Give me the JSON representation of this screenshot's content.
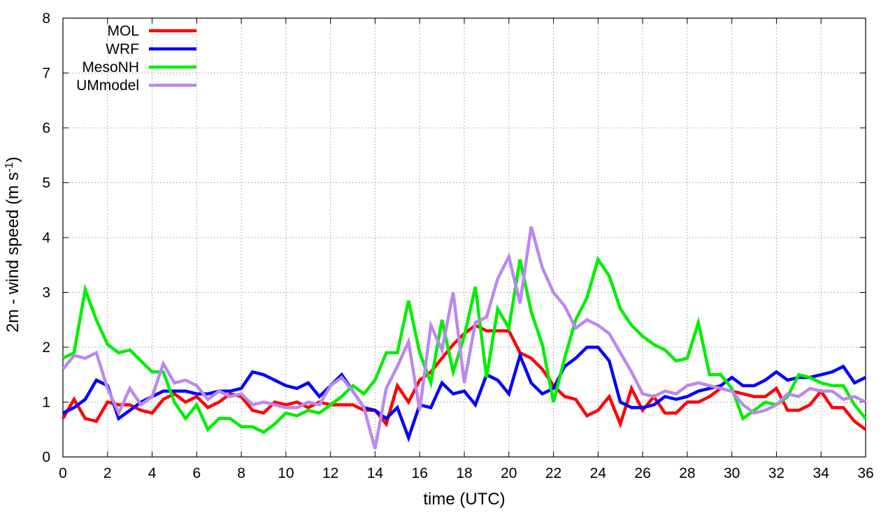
{
  "chart_data": {
    "type": "line",
    "xlabel": "time (UTC)",
    "ylabel": {
      "main": "2m - wind speed  (m s",
      "sup": "-1",
      "close": ")"
    },
    "xlim": [
      0,
      36
    ],
    "ylim": [
      0,
      8
    ],
    "xticks": [
      "0",
      "2",
      "4",
      "6",
      "8",
      "10",
      "12",
      "14",
      "16",
      "18",
      "20",
      "22",
      "24",
      "26",
      "28",
      "30",
      "32",
      "34",
      "36"
    ],
    "yticks": [
      "0",
      "1",
      "2",
      "3",
      "4",
      "5",
      "6",
      "7",
      "8"
    ],
    "grid": true,
    "legend_position": "top-left",
    "x": [
      0,
      0.5,
      1,
      1.5,
      2,
      2.5,
      3,
      3.5,
      4,
      4.5,
      5,
      5.5,
      6,
      6.5,
      7,
      7.5,
      8,
      8.5,
      9,
      9.5,
      10,
      10.5,
      11,
      11.5,
      12,
      12.5,
      13,
      13.5,
      14,
      14.5,
      15,
      15.5,
      16,
      16.5,
      17,
      17.5,
      18,
      18.5,
      19,
      19.5,
      20,
      20.5,
      21,
      21.5,
      22,
      22.5,
      23,
      23.5,
      24,
      24.5,
      25,
      25.5,
      26,
      26.5,
      27,
      27.5,
      28,
      28.5,
      29,
      29.5,
      30,
      30.5,
      31,
      31.5,
      32,
      32.5,
      33,
      33.5,
      34,
      34.5,
      35,
      35.5,
      36
    ],
    "series": [
      {
        "name": "MOL",
        "color": "#ff0000",
        "values": [
          0.7,
          1.05,
          0.7,
          0.65,
          1.0,
          0.95,
          0.95,
          0.85,
          0.8,
          1.05,
          1.15,
          1.0,
          1.1,
          0.9,
          1.0,
          1.15,
          1.1,
          0.85,
          0.8,
          1.0,
          0.95,
          1.0,
          0.9,
          1.0,
          0.95,
          0.95,
          0.95,
          0.85,
          0.85,
          0.6,
          1.3,
          1.0,
          1.4,
          1.55,
          1.8,
          2.05,
          2.25,
          2.4,
          2.3,
          2.3,
          2.3,
          1.9,
          1.8,
          1.6,
          1.3,
          1.1,
          1.05,
          0.75,
          0.85,
          1.1,
          0.6,
          1.25,
          0.85,
          1.1,
          0.8,
          0.8,
          1.0,
          1.0,
          1.1,
          1.25,
          1.2,
          1.15,
          1.1,
          1.1,
          1.25,
          0.85,
          0.85,
          0.95,
          1.2,
          0.9,
          0.9,
          0.65,
          0.5
        ]
      },
      {
        "name": "WRF",
        "color": "#0000ff",
        "values": [
          0.8,
          0.9,
          1.05,
          1.4,
          1.3,
          0.7,
          0.85,
          1.0,
          1.1,
          1.2,
          1.2,
          1.2,
          1.15,
          1.15,
          1.2,
          1.2,
          1.25,
          1.55,
          1.5,
          1.4,
          1.3,
          1.25,
          1.35,
          1.1,
          1.3,
          1.5,
          1.2,
          0.9,
          0.85,
          0.7,
          0.9,
          0.35,
          0.95,
          0.9,
          1.35,
          1.15,
          1.2,
          0.95,
          1.5,
          1.4,
          1.15,
          1.85,
          1.35,
          1.15,
          1.25,
          1.65,
          1.8,
          2.0,
          2.0,
          1.75,
          1.0,
          0.9,
          0.9,
          0.95,
          1.1,
          1.05,
          1.1,
          1.2,
          1.25,
          1.3,
          1.45,
          1.3,
          1.3,
          1.4,
          1.55,
          1.4,
          1.45,
          1.45,
          1.5,
          1.55,
          1.65,
          1.35,
          1.45
        ]
      },
      {
        "name": "MesoNH",
        "color": "#00ee00",
        "values": [
          1.8,
          1.9,
          3.05,
          2.5,
          2.05,
          1.9,
          1.95,
          1.75,
          1.55,
          1.55,
          1.0,
          0.7,
          0.95,
          0.5,
          0.7,
          0.7,
          0.55,
          0.55,
          0.45,
          0.6,
          0.8,
          0.75,
          0.85,
          0.8,
          0.95,
          1.1,
          1.3,
          1.15,
          1.4,
          1.9,
          1.9,
          2.85,
          1.9,
          1.35,
          2.5,
          1.55,
          2.2,
          3.1,
          1.45,
          2.7,
          2.35,
          3.6,
          2.65,
          2.05,
          1.0,
          1.8,
          2.5,
          2.9,
          3.6,
          3.3,
          2.7,
          2.4,
          2.2,
          2.05,
          1.95,
          1.75,
          1.8,
          2.45,
          1.5,
          1.5,
          1.25,
          0.7,
          0.85,
          1.0,
          0.95,
          1.1,
          1.5,
          1.45,
          1.35,
          1.3,
          1.3,
          0.95,
          0.7
        ]
      },
      {
        "name": "UMmodel",
        "color": "#bb88ee",
        "values": [
          1.6,
          1.85,
          1.8,
          1.9,
          1.25,
          0.8,
          1.25,
          0.95,
          1.1,
          1.7,
          1.35,
          1.4,
          1.3,
          1.05,
          1.2,
          1.1,
          1.15,
          0.95,
          1.0,
          0.95,
          0.9,
          0.9,
          1.0,
          0.95,
          1.3,
          1.45,
          1.2,
          0.9,
          0.15,
          1.25,
          1.65,
          2.1,
          0.85,
          2.4,
          1.95,
          3.0,
          1.35,
          2.45,
          2.55,
          3.25,
          3.65,
          2.8,
          4.2,
          3.45,
          3.0,
          2.75,
          2.35,
          2.5,
          2.4,
          2.25,
          1.9,
          1.55,
          1.15,
          1.1,
          1.2,
          1.15,
          1.3,
          1.35,
          1.3,
          1.25,
          1.2,
          0.95,
          0.8,
          0.85,
          0.95,
          1.15,
          1.1,
          1.25,
          1.2,
          1.2,
          1.05,
          1.1,
          1.0
        ]
      }
    ]
  }
}
